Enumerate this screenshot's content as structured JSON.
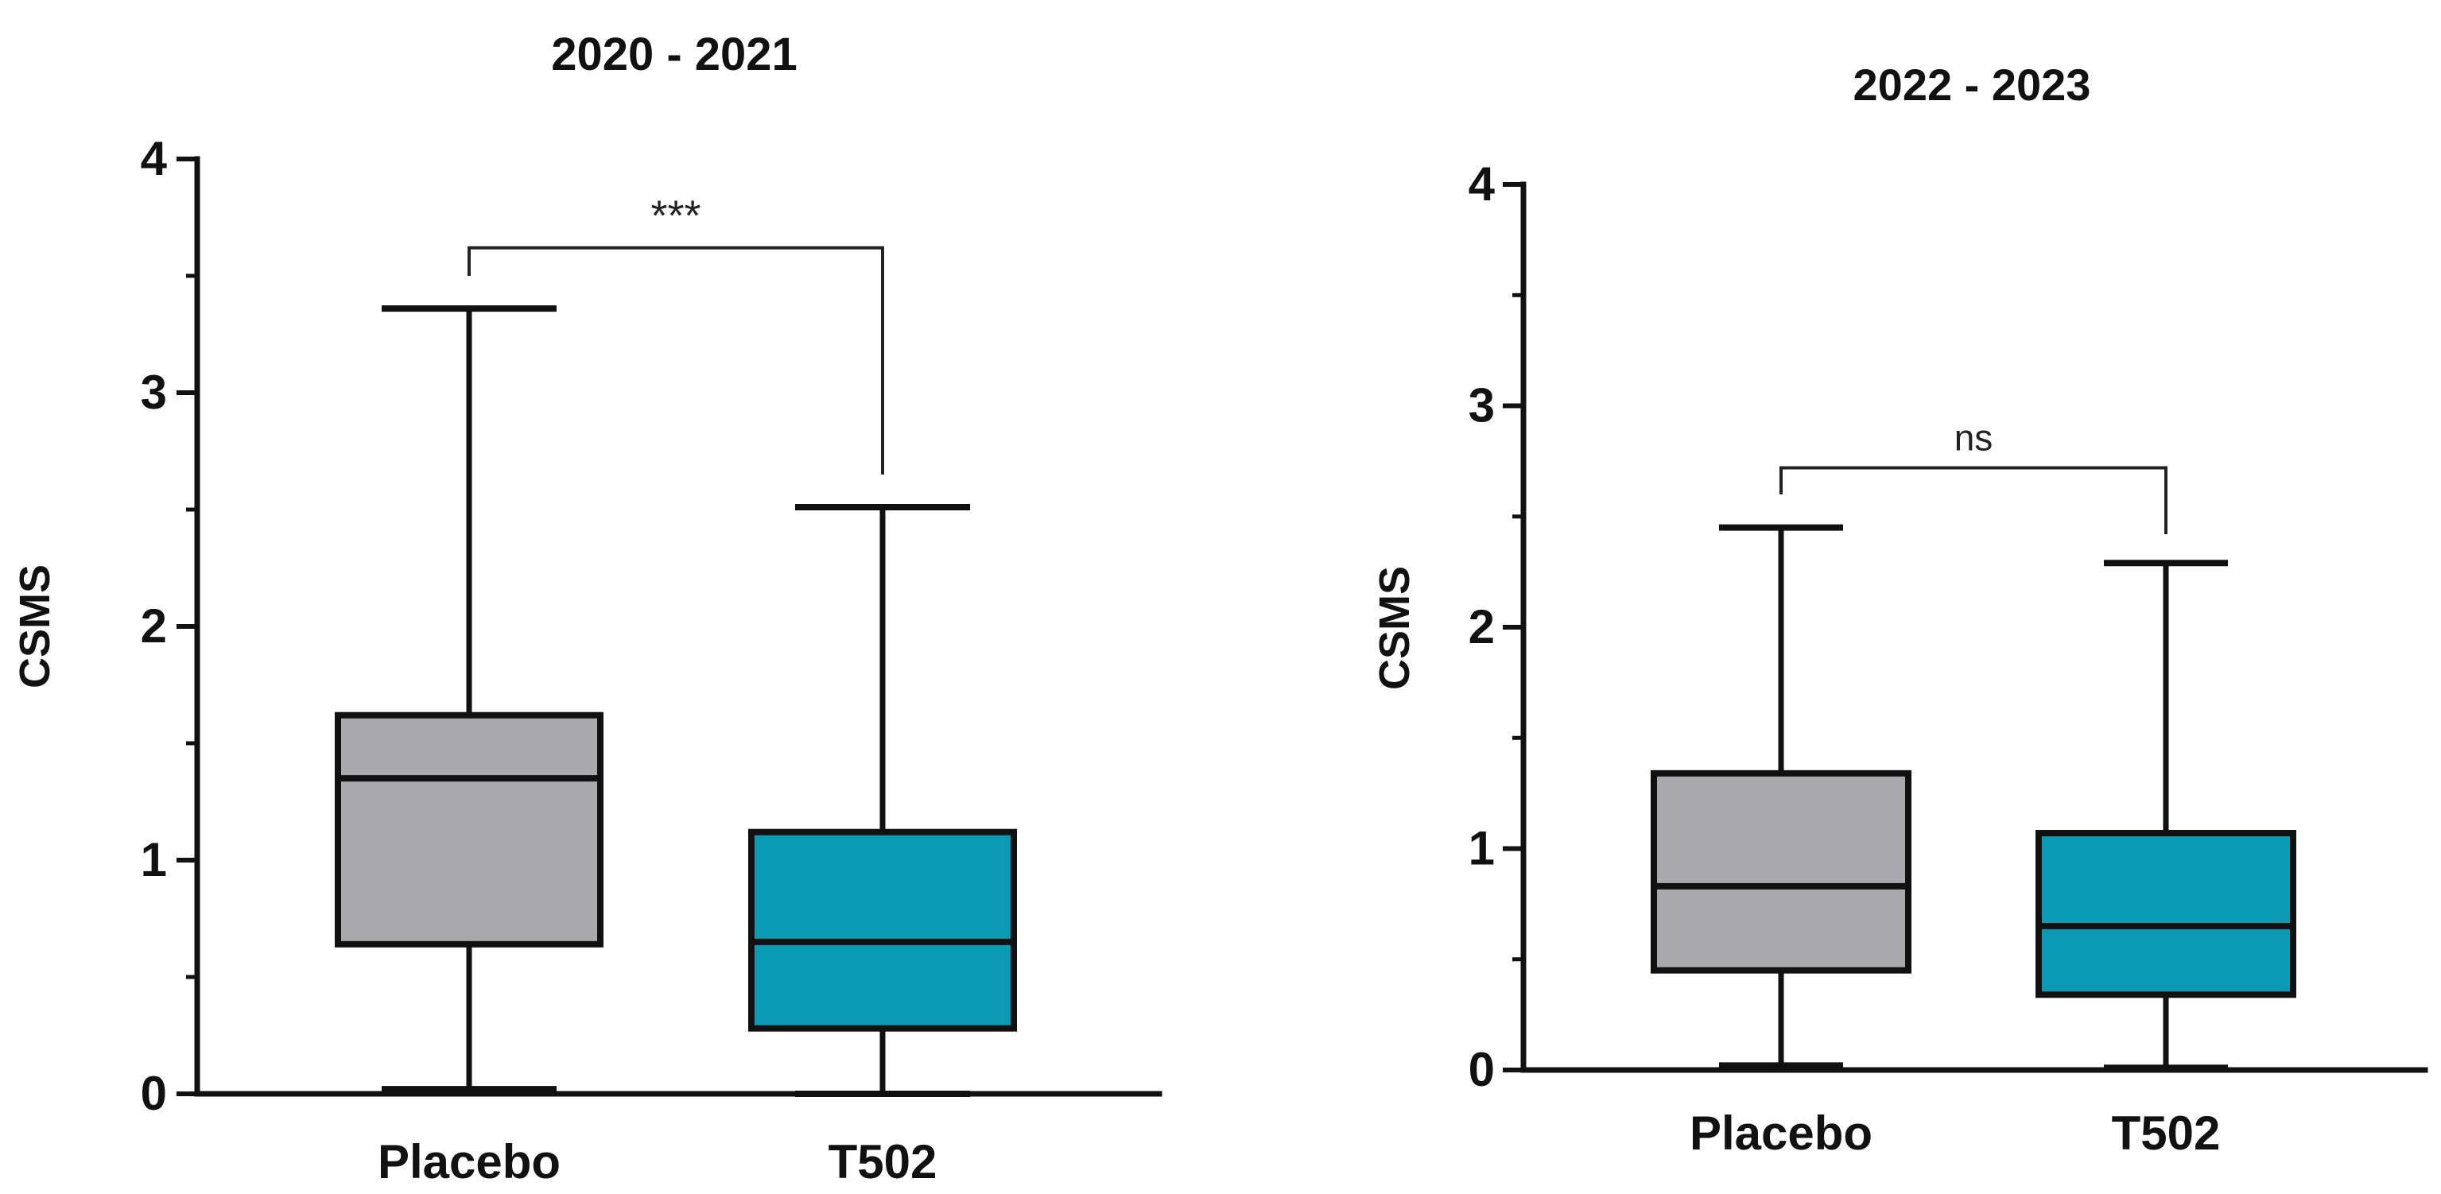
{
  "chart_data": [
    {
      "type": "box",
      "title": "2020 - 2021",
      "ylabel": "CSMS",
      "ylim": [
        0,
        4
      ],
      "yticks": [
        "0",
        "1",
        "2",
        "3",
        "4"
      ],
      "categories": [
        "Placebo",
        "T502"
      ],
      "boxes": [
        {
          "label": "Placebo",
          "min": 0.02,
          "q1": 0.64,
          "median": 1.35,
          "q3": 1.62,
          "max": 3.36,
          "color": "#a8a8ad"
        },
        {
          "label": "T502",
          "min": 0.0,
          "q1": 0.28,
          "median": 0.65,
          "q3": 1.12,
          "max": 2.51,
          "color": "#0b9ab3"
        }
      ],
      "significance": {
        "label": "***",
        "between": [
          "Placebo",
          "T502"
        ]
      }
    },
    {
      "type": "box",
      "title": "2022 - 2023",
      "ylabel": "CSMS",
      "ylim": [
        0,
        4
      ],
      "yticks": [
        "0",
        "1",
        "2",
        "3",
        "4"
      ],
      "categories": [
        "Placebo",
        "T502"
      ],
      "boxes": [
        {
          "label": "Placebo",
          "min": 0.02,
          "q1": 0.45,
          "median": 0.83,
          "q3": 1.34,
          "max": 2.45,
          "color": "#a8a8ad"
        },
        {
          "label": "T502",
          "min": 0.01,
          "q1": 0.34,
          "median": 0.65,
          "q3": 1.07,
          "max": 2.29,
          "color": "#0b9ab3"
        }
      ],
      "significance": {
        "label": "ns",
        "between": [
          "Placebo",
          "T502"
        ]
      }
    }
  ]
}
